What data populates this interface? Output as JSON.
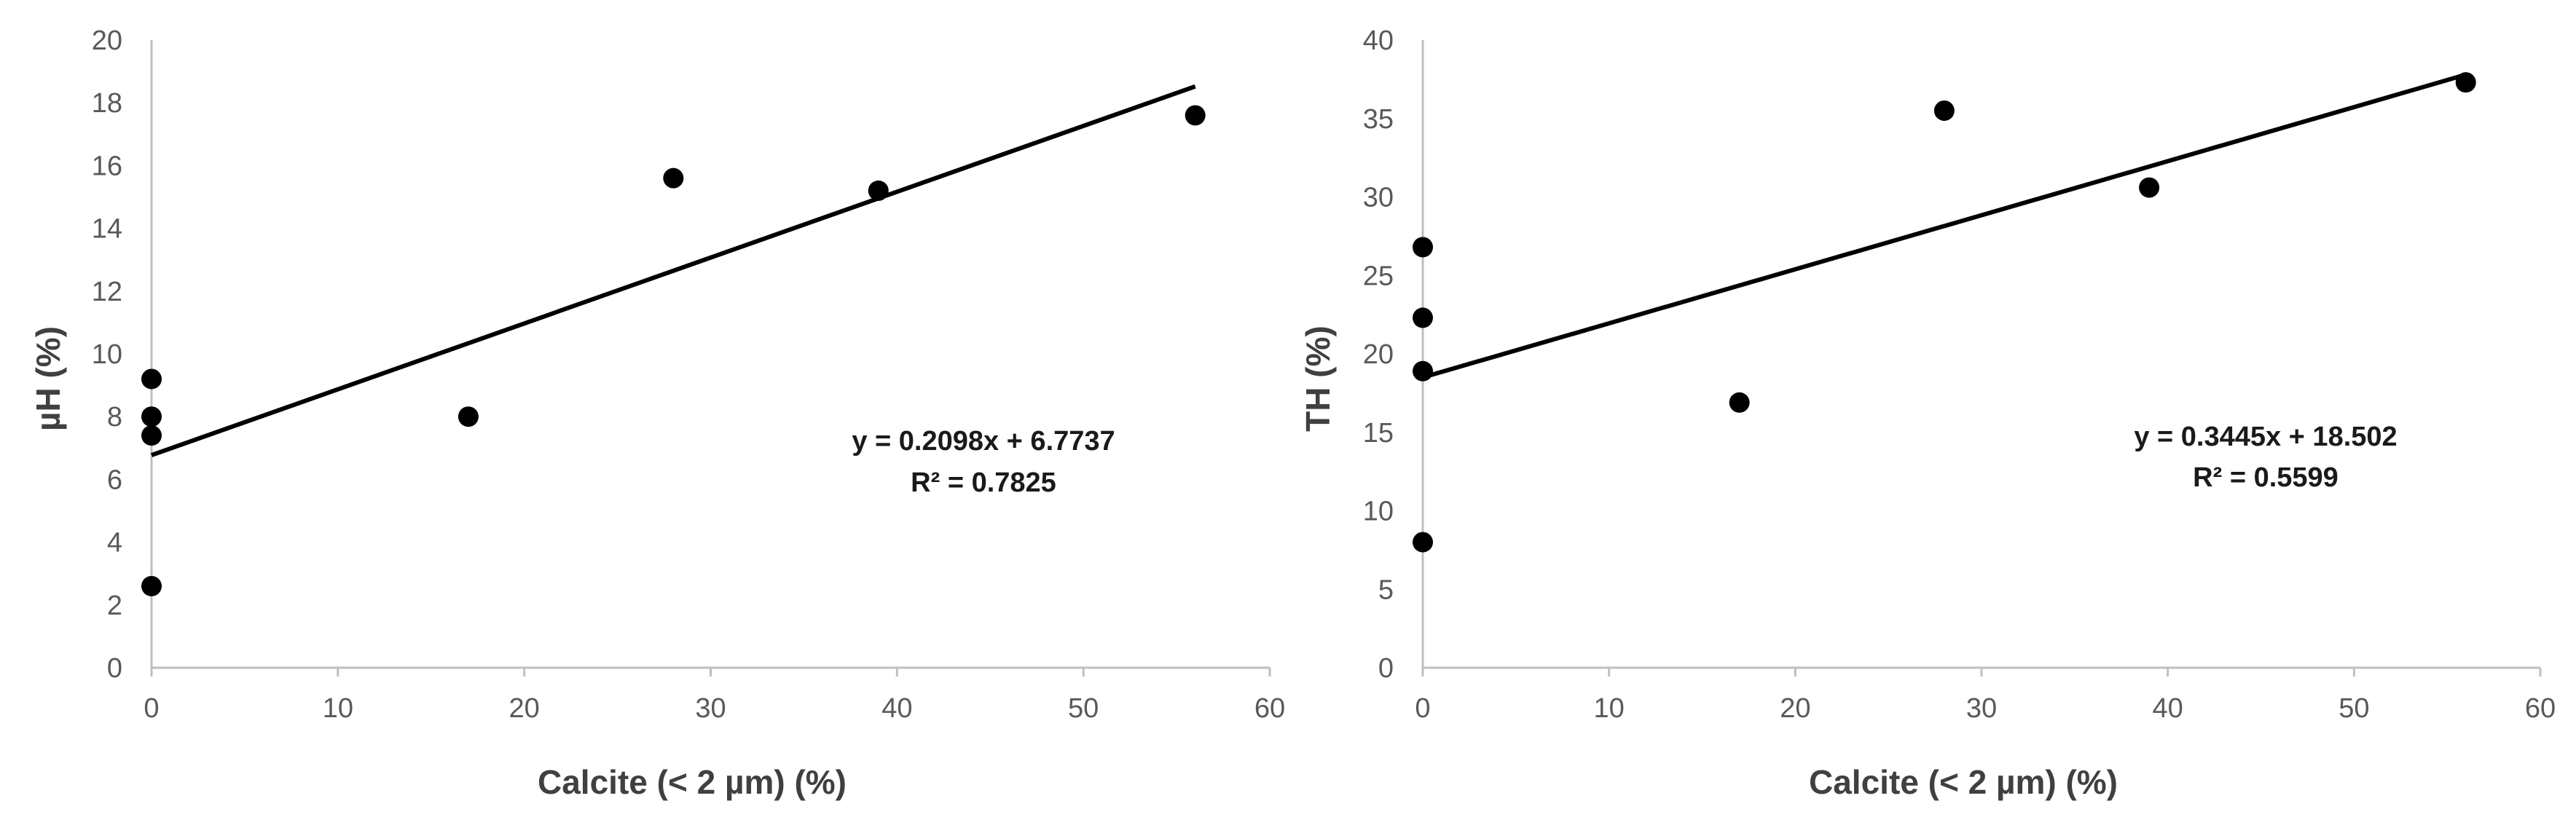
{
  "chart_data": [
    {
      "type": "scatter",
      "xlabel": "Calcite (< 2 µm) (%)",
      "ylabel": "µH (%)",
      "xlim": [
        0,
        60
      ],
      "ylim": [
        0,
        20
      ],
      "xticks": [
        "0",
        "10",
        "20",
        "30",
        "40",
        "50",
        "60"
      ],
      "yticks": [
        "0",
        "2",
        "4",
        "6",
        "8",
        "10",
        "12",
        "14",
        "16",
        "18",
        "20"
      ],
      "grid": false,
      "points": [
        {
          "x": 0,
          "y": 2.6
        },
        {
          "x": 0,
          "y": 7.4
        },
        {
          "x": 0,
          "y": 8.0
        },
        {
          "x": 0,
          "y": 9.2
        },
        {
          "x": 17,
          "y": 8.0
        },
        {
          "x": 28,
          "y": 15.6
        },
        {
          "x": 39,
          "y": 15.2
        },
        {
          "x": 56,
          "y": 17.6
        }
      ],
      "trendline": {
        "slope": 0.2098,
        "intercept": 6.7737,
        "x_range": [
          0,
          56
        ]
      },
      "equation": "y = 0.2098x + 6.7737",
      "r2": "R² = 0.7825"
    },
    {
      "type": "scatter",
      "xlabel": "Calcite (< 2 µm) (%)",
      "ylabel": "TH (%)",
      "xlim": [
        0,
        60
      ],
      "ylim": [
        0,
        40
      ],
      "xticks": [
        "0",
        "10",
        "20",
        "30",
        "40",
        "50",
        "60"
      ],
      "yticks": [
        "0",
        "5",
        "10",
        "15",
        "20",
        "25",
        "30",
        "35",
        "40"
      ],
      "grid": false,
      "points": [
        {
          "x": 0,
          "y": 8.0
        },
        {
          "x": 0,
          "y": 18.9
        },
        {
          "x": 0,
          "y": 22.3
        },
        {
          "x": 0,
          "y": 26.8
        },
        {
          "x": 17,
          "y": 16.9
        },
        {
          "x": 28,
          "y": 35.5
        },
        {
          "x": 39,
          "y": 30.6
        },
        {
          "x": 56,
          "y": 37.3
        }
      ],
      "trendline": {
        "slope": 0.3445,
        "intercept": 18.502,
        "x_range": [
          0,
          56
        ]
      },
      "equation": "y = 0.3445x + 18.502",
      "r2": "R² = 0.5599"
    }
  ]
}
